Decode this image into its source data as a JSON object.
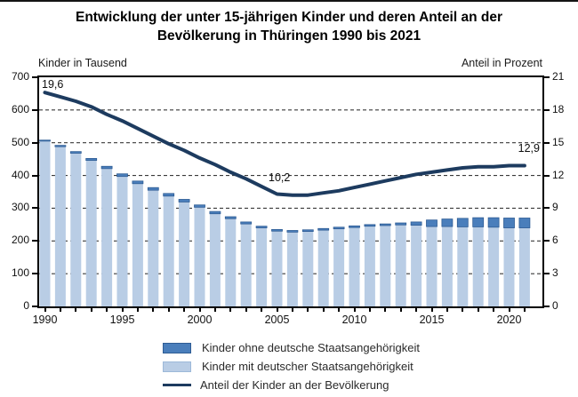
{
  "title": {
    "line1": "Entwicklung der unter 15-jährigen Kinder und deren Anteil an der",
    "line2": "Bevölkerung in Thüringen 1990 bis 2021"
  },
  "legend": {
    "items": [
      {
        "label": "Kinder ohne deutsche Staatsangehörigkeit",
        "swatch": "bar-dark"
      },
      {
        "label": "Kinder mit deutscher Staatsangehörigkeit",
        "swatch": "bar-light"
      },
      {
        "label": "Anteil der Kinder an der Bevölkerung",
        "swatch": "line"
      }
    ]
  },
  "colors": {
    "bar_light": "#b9cde5",
    "bar_dark": "#4a7ebb",
    "bar_dark_edge": "#2e5c94",
    "line": "#1d3b5f",
    "frame": "#000000",
    "gridline": "#3a3a3a"
  },
  "chart_data": {
    "type": "bar",
    "subtype": "stacked bars (left axis, thousands) combined with line (right axis, percent)",
    "title": "Entwicklung der unter 15-jährigen Kinder und deren Anteil an der Bevölkerung in Thüringen 1990 bis 2021",
    "years": [
      1990,
      1991,
      1992,
      1993,
      1994,
      1995,
      1996,
      1997,
      1998,
      1999,
      2000,
      2001,
      2002,
      2003,
      2004,
      2005,
      2006,
      2007,
      2008,
      2009,
      2010,
      2011,
      2012,
      2013,
      2014,
      2015,
      2016,
      2017,
      2018,
      2019,
      2020,
      2021
    ],
    "series": [
      {
        "name": "Kinder mit deutscher Staatsangehörigkeit",
        "axis": "left",
        "unit": "Tausend",
        "values": [
          505,
          488,
          468,
          446,
          421,
          397,
          375,
          355,
          337,
          319,
          303,
          283,
          268,
          252,
          240,
          230,
          227,
          229,
          233,
          237,
          241,
          245,
          247,
          249,
          248,
          244,
          244,
          243,
          243,
          242,
          240,
          240
        ]
      },
      {
        "name": "Kinder ohne deutsche Staatsangehörigkeit",
        "axis": "left",
        "unit": "Tausend",
        "values": [
          3,
          4,
          5,
          6,
          7,
          8,
          8,
          8,
          8,
          8,
          7,
          7,
          6,
          6,
          5,
          5,
          5,
          5,
          5,
          5,
          5,
          5,
          5,
          6,
          10,
          20,
          23,
          26,
          28,
          29,
          30,
          30
        ]
      },
      {
        "name": "Anteil der Kinder an der Bevölkerung",
        "axis": "right",
        "unit": "Prozent",
        "values": [
          19.6,
          19.2,
          18.8,
          18.3,
          17.6,
          17.0,
          16.3,
          15.6,
          14.9,
          14.3,
          13.6,
          13.0,
          12.3,
          11.7,
          11.0,
          10.3,
          10.2,
          10.2,
          10.4,
          10.6,
          10.9,
          11.2,
          11.5,
          11.8,
          12.1,
          12.3,
          12.5,
          12.7,
          12.8,
          12.8,
          12.9,
          12.9
        ]
      }
    ],
    "left_axis": {
      "title": "Kinder in Tausend",
      "min": 0,
      "max": 700,
      "ticks": [
        0,
        100,
        200,
        300,
        400,
        500,
        600,
        700
      ]
    },
    "right_axis": {
      "title": "Anteil in Prozent",
      "min": 0,
      "max": 21,
      "ticks": [
        0,
        3,
        6,
        9,
        12,
        15,
        18,
        21
      ]
    },
    "x_tick_labels": [
      1990,
      1995,
      2000,
      2005,
      2010,
      2015,
      2020
    ],
    "gridlines": "horizontal dashed at every 100 (left) / 3 (right)",
    "annotations": {
      "start": "19,6",
      "min": "10,2",
      "end": "12,9"
    }
  }
}
